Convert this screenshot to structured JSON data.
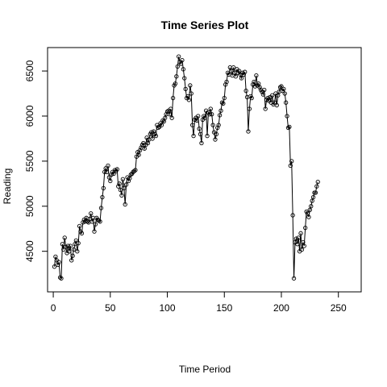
{
  "chart_data": {
    "type": "line",
    "title": "Time Series Plot",
    "xlabel": "Time Period",
    "ylabel": "Reading",
    "xlim": [
      -5,
      270
    ],
    "ylim": [
      4050,
      6760
    ],
    "xticks": [
      0,
      50,
      100,
      150,
      200,
      250
    ],
    "yticks": [
      4500,
      5000,
      5500,
      6000,
      6500
    ],
    "grid": false,
    "legend": "none",
    "line_color": "#000000",
    "marker": "open-circle",
    "x_start": 1,
    "series": [
      {
        "values": [
          4330,
          4440,
          4400,
          4350,
          4380,
          4210,
          4200,
          4580,
          4520,
          4650,
          4550,
          4480,
          4560,
          4500,
          4560,
          4400,
          4450,
          4520,
          4580,
          4620,
          4500,
          4590,
          4780,
          4720,
          4700,
          4820,
          4850,
          4830,
          4870,
          4830,
          4820,
          4860,
          4920,
          4830,
          4870,
          4720,
          4800,
          4870,
          4850,
          4840,
          4830,
          4980,
          5100,
          5200,
          5380,
          5420,
          5380,
          5450,
          5320,
          5280,
          5350,
          5380,
          5360,
          5400,
          5390,
          5410,
          5220,
          5250,
          5180,
          5120,
          5300,
          5200,
          5020,
          5240,
          5320,
          5280,
          5310,
          5350,
          5360,
          5380,
          5390,
          5400,
          5550,
          5600,
          5570,
          5620,
          5650,
          5680,
          5700,
          5640,
          5680,
          5760,
          5700,
          5740,
          5800,
          5820,
          5750,
          5830,
          5800,
          5780,
          5900,
          5870,
          5880,
          5920,
          5900,
          5950,
          5940,
          5980,
          6020,
          6050,
          6060,
          6020,
          6080,
          5980,
          6200,
          6340,
          6360,
          6440,
          6550,
          6660,
          6600,
          6580,
          6620,
          6520,
          6420,
          6300,
          6200,
          6220,
          6180,
          6340,
          6250,
          5900,
          5780,
          5960,
          5980,
          5950,
          6000,
          5860,
          5800,
          5700,
          5960,
          6000,
          5980,
          6060,
          5780,
          6040,
          6020,
          6080,
          6020,
          5900,
          5820,
          5740,
          5800,
          5870,
          5900,
          6010,
          6060,
          6150,
          6140,
          6200,
          6350,
          6380,
          6480,
          6460,
          6540,
          6500,
          6450,
          6540,
          6480,
          6440,
          6520,
          6480,
          6500,
          6460,
          6420,
          6480,
          6460,
          6490,
          6280,
          6210,
          5830,
          6080,
          6220,
          6200,
          6350,
          6380,
          6330,
          6450,
          6340,
          6360,
          6320,
          6290,
          6270,
          6240,
          6290,
          6080,
          6180,
          6200,
          6170,
          6210,
          6150,
          6230,
          6130,
          6150,
          6250,
          6120,
          6230,
          6270,
          6320,
          6330,
          6280,
          6300,
          6250,
          6150,
          6000,
          5870,
          5880,
          5450,
          5500,
          4900,
          4200,
          4600,
          4640,
          4580,
          4650,
          4500,
          4700,
          4520,
          4600,
          4560,
          4760,
          4940,
          4920,
          4880,
          4960,
          5000,
          5060,
          5100,
          5150,
          5150,
          5220,
          5270
        ]
      }
    ]
  }
}
